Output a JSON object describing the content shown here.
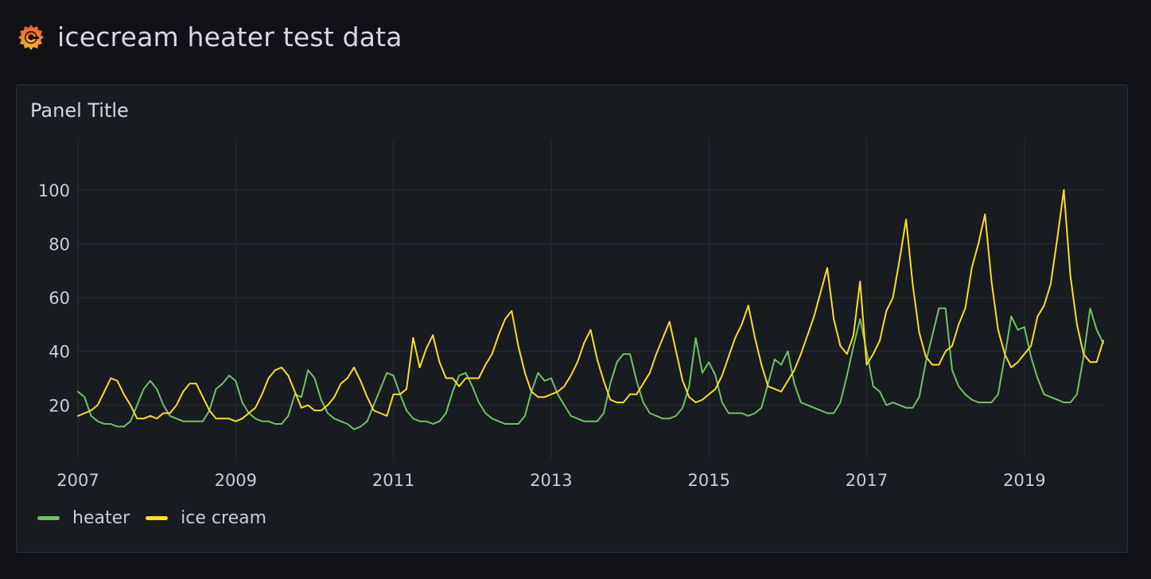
{
  "dashboard": {
    "title": "icecream heater test data",
    "logo_icon": "grafana-logo-icon"
  },
  "panel": {
    "title": "Panel Title"
  },
  "colors": {
    "background": "#111217",
    "panel": "#181b1f",
    "grid": "#2c2f36",
    "heater": "#73bf69",
    "ice_cream": "#fade2a"
  },
  "legend": {
    "items": [
      {
        "label": "heater",
        "color": "#73bf69"
      },
      {
        "label": "ice cream",
        "color": "#fade2a"
      }
    ]
  },
  "chart_data": {
    "type": "line",
    "title": "Panel Title",
    "xlabel": "",
    "ylabel": "",
    "x_ticks": [
      "2007",
      "2009",
      "2011",
      "2013",
      "2015",
      "2017",
      "2019"
    ],
    "y_ticks": [
      20,
      40,
      60,
      80,
      100
    ],
    "ylim": [
      0,
      110
    ],
    "xlim": [
      "2007-01",
      "2020-01"
    ],
    "grid": true,
    "legend_position": "bottom-left",
    "x": [
      "2007-01",
      "2007-02",
      "2007-03",
      "2007-04",
      "2007-05",
      "2007-06",
      "2007-07",
      "2007-08",
      "2007-09",
      "2007-10",
      "2007-11",
      "2007-12",
      "2008-01",
      "2008-02",
      "2008-03",
      "2008-04",
      "2008-05",
      "2008-06",
      "2008-07",
      "2008-08",
      "2008-09",
      "2008-10",
      "2008-11",
      "2008-12",
      "2009-01",
      "2009-02",
      "2009-03",
      "2009-04",
      "2009-05",
      "2009-06",
      "2009-07",
      "2009-08",
      "2009-09",
      "2009-10",
      "2009-11",
      "2009-12",
      "2010-01",
      "2010-02",
      "2010-03",
      "2010-04",
      "2010-05",
      "2010-06",
      "2010-07",
      "2010-08",
      "2010-09",
      "2010-10",
      "2010-11",
      "2010-12",
      "2011-01",
      "2011-02",
      "2011-03",
      "2011-04",
      "2011-05",
      "2011-06",
      "2011-07",
      "2011-08",
      "2011-09",
      "2011-10",
      "2011-11",
      "2011-12",
      "2012-01",
      "2012-02",
      "2012-03",
      "2012-04",
      "2012-05",
      "2012-06",
      "2012-07",
      "2012-08",
      "2012-09",
      "2012-10",
      "2012-11",
      "2012-12",
      "2013-01",
      "2013-02",
      "2013-03",
      "2013-04",
      "2013-05",
      "2013-06",
      "2013-07",
      "2013-08",
      "2013-09",
      "2013-10",
      "2013-11",
      "2013-12",
      "2014-01",
      "2014-02",
      "2014-03",
      "2014-04",
      "2014-05",
      "2014-06",
      "2014-07",
      "2014-08",
      "2014-09",
      "2014-10",
      "2014-11",
      "2014-12",
      "2015-01",
      "2015-02",
      "2015-03",
      "2015-04",
      "2015-05",
      "2015-06",
      "2015-07",
      "2015-08",
      "2015-09",
      "2015-10",
      "2015-11",
      "2015-12",
      "2016-01",
      "2016-02",
      "2016-03",
      "2016-04",
      "2016-05",
      "2016-06",
      "2016-07",
      "2016-08",
      "2016-09",
      "2016-10",
      "2016-11",
      "2016-12",
      "2017-01",
      "2017-02",
      "2017-03",
      "2017-04",
      "2017-05",
      "2017-06",
      "2017-07",
      "2017-08",
      "2017-09",
      "2017-10",
      "2017-11",
      "2017-12",
      "2018-01",
      "2018-02",
      "2018-03",
      "2018-04",
      "2018-05",
      "2018-06",
      "2018-07",
      "2018-08",
      "2018-09",
      "2018-10",
      "2018-11",
      "2018-12",
      "2019-01",
      "2019-02",
      "2019-03",
      "2019-04",
      "2019-05",
      "2019-06",
      "2019-07",
      "2019-08",
      "2019-09",
      "2019-10",
      "2019-11",
      "2019-12",
      "2020-01"
    ],
    "series": [
      {
        "name": "heater",
        "color": "#73bf69",
        "values": [
          25,
          23,
          16,
          14,
          13,
          13,
          12,
          12,
          14,
          20,
          26,
          29,
          26,
          20,
          16,
          15,
          14,
          14,
          14,
          14,
          18,
          26,
          28,
          31,
          29,
          21,
          17,
          15,
          14,
          14,
          13,
          13,
          16,
          24,
          23,
          33,
          30,
          22,
          17,
          15,
          14,
          13,
          11,
          12,
          14,
          20,
          26,
          32,
          31,
          24,
          18,
          15,
          14,
          14,
          13,
          14,
          17,
          25,
          31,
          32,
          27,
          21,
          17,
          15,
          14,
          13,
          13,
          13,
          16,
          25,
          32,
          29,
          30,
          24,
          20,
          16,
          15,
          14,
          14,
          14,
          17,
          28,
          36,
          39,
          39,
          29,
          21,
          17,
          16,
          15,
          15,
          16,
          19,
          27,
          45,
          32,
          36,
          31,
          21,
          17,
          17,
          17,
          16,
          17,
          19,
          28,
          37,
          35,
          40,
          28,
          21,
          20,
          19,
          18,
          17,
          17,
          21,
          31,
          42,
          52,
          40,
          27,
          25,
          20,
          21,
          20,
          19,
          19,
          23,
          36,
          46,
          56,
          56,
          33,
          27,
          24,
          22,
          21,
          21,
          21,
          24,
          38,
          53,
          48,
          49,
          38,
          30,
          24,
          23,
          22,
          21,
          21,
          24,
          38,
          56,
          48,
          43
        ]
      },
      {
        "name": "ice cream",
        "color": "#fade2a",
        "values": [
          16,
          17,
          18,
          20,
          25,
          30,
          29,
          24,
          20,
          15,
          15,
          16,
          15,
          17,
          17,
          20,
          25,
          28,
          28,
          23,
          18,
          15,
          15,
          15,
          14,
          15,
          17,
          19,
          24,
          30,
          33,
          34,
          31,
          25,
          19,
          20,
          18,
          18,
          20,
          23,
          28,
          30,
          34,
          29,
          23,
          18,
          17,
          16,
          24,
          24,
          26,
          45,
          34,
          41,
          46,
          36,
          30,
          30,
          27,
          30,
          30,
          30,
          35,
          39,
          46,
          52,
          55,
          42,
          32,
          25,
          23,
          23,
          24,
          25,
          27,
          31,
          36,
          43,
          48,
          37,
          29,
          22,
          21,
          21,
          24,
          24,
          28,
          32,
          39,
          45,
          51,
          40,
          29,
          23,
          21,
          22,
          24,
          26,
          31,
          38,
          45,
          50,
          57,
          45,
          35,
          27,
          26,
          25,
          29,
          33,
          39,
          46,
          53,
          62,
          71,
          52,
          42,
          39,
          46,
          66,
          35,
          39,
          44,
          55,
          60,
          74,
          89,
          65,
          47,
          38,
          35,
          35,
          40,
          42,
          50,
          56,
          71,
          80,
          91,
          66,
          48,
          39,
          34,
          36,
          39,
          42,
          53,
          57,
          65,
          82,
          100,
          68,
          50,
          39,
          36,
          36,
          44
        ]
      }
    ]
  }
}
